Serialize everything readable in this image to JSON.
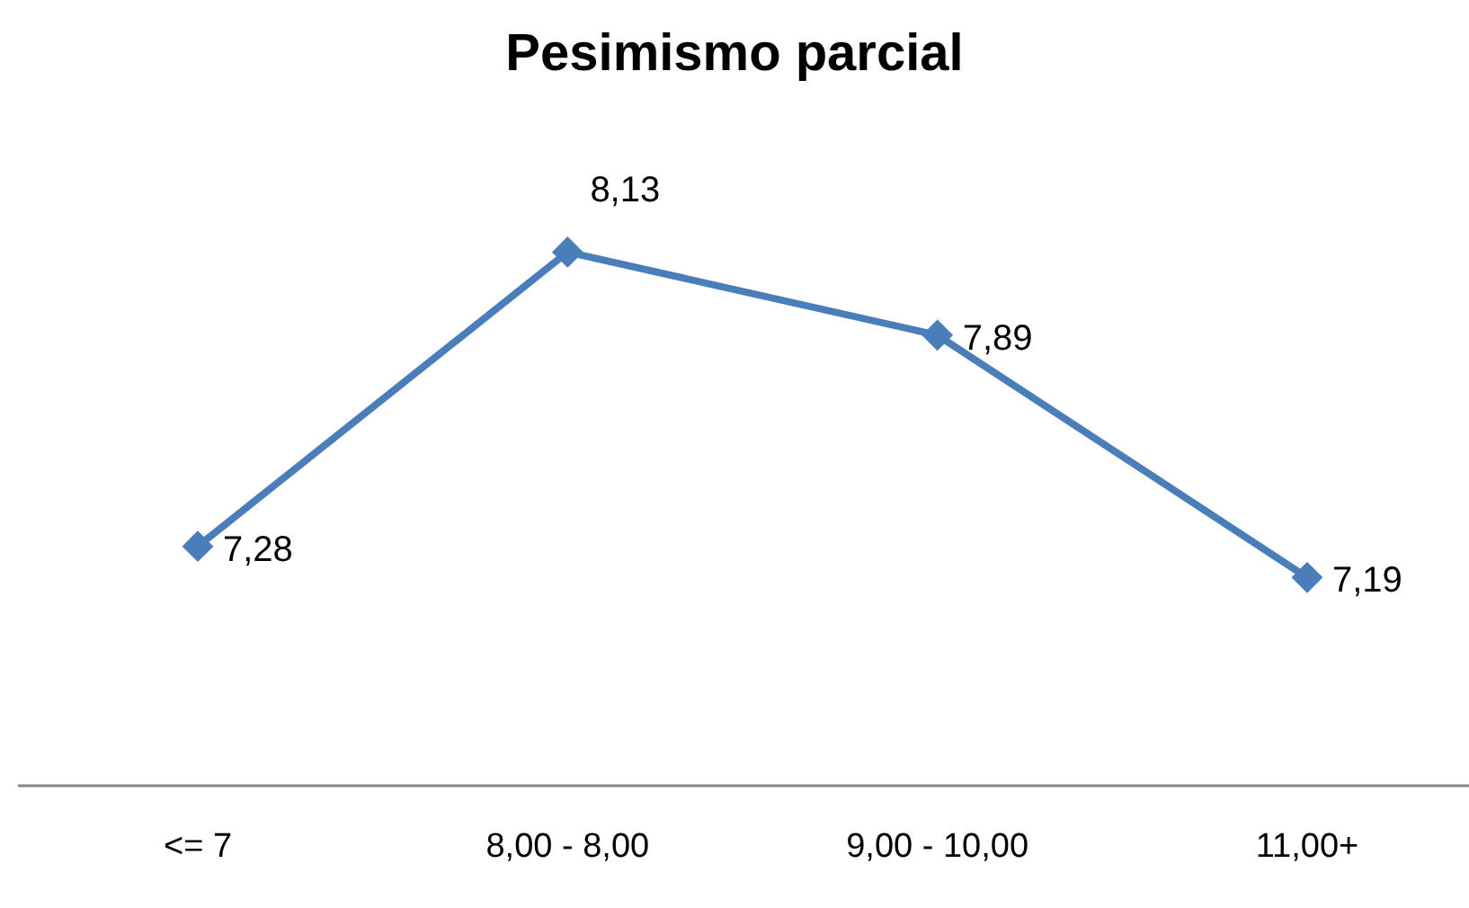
{
  "chart_data": {
    "type": "line",
    "title": "Pesimismo parcial",
    "categories": [
      "<= 7",
      "8,00 - 8,00",
      "9,00 - 10,00",
      "11,00+"
    ],
    "series": [
      {
        "color": "#4a7ebb",
        "values": [
          7.28,
          8.13,
          7.89,
          7.19
        ],
        "value_labels": [
          "7,28",
          "8,13",
          "7,89",
          "7,19"
        ]
      }
    ],
    "marker": "diamond",
    "line_style": "solid",
    "tick_labels": "x"
  }
}
